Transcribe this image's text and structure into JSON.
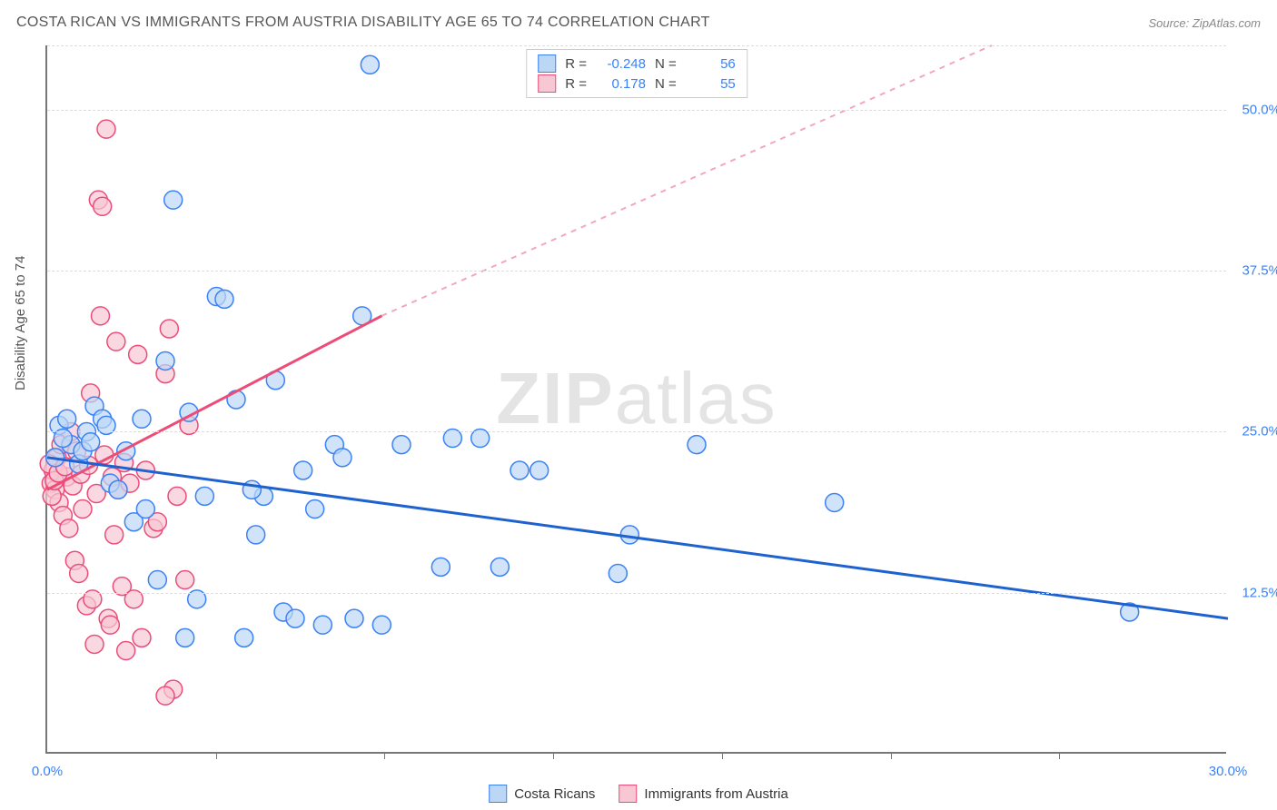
{
  "header": {
    "title": "COSTA RICAN VS IMMIGRANTS FROM AUSTRIA DISABILITY AGE 65 TO 74 CORRELATION CHART",
    "source_label": "Source: ZipAtlas.com"
  },
  "watermark": "ZIPatlas",
  "axes": {
    "y_title": "Disability Age 65 to 74",
    "x_min": 0.0,
    "x_max": 30.0,
    "y_min": 0.0,
    "y_max": 55.0,
    "x_ticks": [
      0.0,
      30.0
    ],
    "x_tick_labels": [
      "0.0%",
      "30.0%"
    ],
    "x_minor_ticks": [
      4.29,
      8.57,
      12.86,
      17.14,
      21.43,
      25.71
    ],
    "y_gridlines": [
      12.5,
      25.0,
      37.5,
      50.0
    ],
    "y_tick_labels": [
      "12.5%",
      "25.0%",
      "37.5%",
      "50.0%"
    ],
    "grid_color": "#dddddd",
    "axis_color": "#777777",
    "tick_label_color": "#3b82f6",
    "label_fontsize": 15
  },
  "legend_top": {
    "rows": [
      {
        "swatch_fill": "#bcd7f5",
        "swatch_stroke": "#3b82f6",
        "r_label": "R =",
        "r_value": "-0.248",
        "n_label": "N =",
        "n_value": "56"
      },
      {
        "swatch_fill": "#f7c8d4",
        "swatch_stroke": "#ec4d78",
        "r_label": "R =",
        "r_value": "0.178",
        "n_label": "N =",
        "n_value": "55"
      }
    ]
  },
  "legend_bottom": {
    "items": [
      {
        "swatch_fill": "#bcd7f5",
        "swatch_stroke": "#3b82f6",
        "label": "Costa Ricans"
      },
      {
        "swatch_fill": "#f7c8d4",
        "swatch_stroke": "#ec4d78",
        "label": "Immigrants from Austria"
      }
    ]
  },
  "series": {
    "blue": {
      "fill": "#bcd7f5",
      "stroke": "#3b82f6",
      "opacity": 0.7,
      "radius": 10,
      "points": [
        [
          0.2,
          23.0
        ],
        [
          0.3,
          25.5
        ],
        [
          0.5,
          26.0
        ],
        [
          0.6,
          24.0
        ],
        [
          0.8,
          22.5
        ],
        [
          1.0,
          25.0
        ],
        [
          1.2,
          27.0
        ],
        [
          1.4,
          26.0
        ],
        [
          1.6,
          21.0
        ],
        [
          1.8,
          20.5
        ],
        [
          2.0,
          23.5
        ],
        [
          2.2,
          18.0
        ],
        [
          2.5,
          19.0
        ],
        [
          2.8,
          13.5
        ],
        [
          3.0,
          30.5
        ],
        [
          3.2,
          43.0
        ],
        [
          3.5,
          9.0
        ],
        [
          3.8,
          12.0
        ],
        [
          4.0,
          20.0
        ],
        [
          4.3,
          35.5
        ],
        [
          4.5,
          35.3
        ],
        [
          4.8,
          27.5
        ],
        [
          5.0,
          9.0
        ],
        [
          5.3,
          17.0
        ],
        [
          5.5,
          20.0
        ],
        [
          5.8,
          29.0
        ],
        [
          6.0,
          11.0
        ],
        [
          6.3,
          10.5
        ],
        [
          6.5,
          22.0
        ],
        [
          7.0,
          10.0
        ],
        [
          7.3,
          24.0
        ],
        [
          7.5,
          23.0
        ],
        [
          7.8,
          10.5
        ],
        [
          8.0,
          34.0
        ],
        [
          8.2,
          53.5
        ],
        [
          8.5,
          10.0
        ],
        [
          9.0,
          24.0
        ],
        [
          10.0,
          14.5
        ],
        [
          10.3,
          24.5
        ],
        [
          11.0,
          24.5
        ],
        [
          11.5,
          14.5
        ],
        [
          12.0,
          22.0
        ],
        [
          12.5,
          22.0
        ],
        [
          14.5,
          14.0
        ],
        [
          14.8,
          17.0
        ],
        [
          16.5,
          24.0
        ],
        [
          20.0,
          19.5
        ],
        [
          27.5,
          11.0
        ],
        [
          0.4,
          24.5
        ],
        [
          0.9,
          23.5
        ],
        [
          1.5,
          25.5
        ],
        [
          2.4,
          26.0
        ],
        [
          3.6,
          26.5
        ],
        [
          5.2,
          20.5
        ],
        [
          6.8,
          19.0
        ],
        [
          1.1,
          24.2
        ]
      ]
    },
    "pink": {
      "fill": "#f7c8d4",
      "stroke": "#ec4d78",
      "opacity": 0.7,
      "radius": 10,
      "points": [
        [
          0.1,
          21.0
        ],
        [
          0.15,
          22.0
        ],
        [
          0.2,
          20.5
        ],
        [
          0.25,
          23.0
        ],
        [
          0.3,
          19.5
        ],
        [
          0.35,
          24.0
        ],
        [
          0.4,
          18.5
        ],
        [
          0.5,
          21.5
        ],
        [
          0.55,
          17.5
        ],
        [
          0.6,
          25.0
        ],
        [
          0.7,
          15.0
        ],
        [
          0.75,
          23.5
        ],
        [
          0.8,
          14.0
        ],
        [
          0.9,
          19.0
        ],
        [
          1.0,
          11.5
        ],
        [
          1.1,
          28.0
        ],
        [
          1.15,
          12.0
        ],
        [
          1.2,
          8.5
        ],
        [
          1.3,
          43.0
        ],
        [
          1.35,
          34.0
        ],
        [
          1.4,
          42.5
        ],
        [
          1.5,
          48.5
        ],
        [
          1.55,
          10.5
        ],
        [
          1.6,
          10.0
        ],
        [
          1.7,
          17.0
        ],
        [
          1.75,
          32.0
        ],
        [
          1.8,
          20.5
        ],
        [
          1.9,
          13.0
        ],
        [
          2.0,
          8.0
        ],
        [
          2.1,
          21.0
        ],
        [
          2.2,
          12.0
        ],
        [
          2.3,
          31.0
        ],
        [
          2.4,
          9.0
        ],
        [
          2.5,
          22.0
        ],
        [
          2.7,
          17.5
        ],
        [
          2.8,
          18.0
        ],
        [
          3.0,
          29.5
        ],
        [
          3.1,
          33.0
        ],
        [
          3.2,
          5.0
        ],
        [
          3.3,
          20.0
        ],
        [
          3.5,
          13.5
        ],
        [
          3.6,
          25.5
        ],
        [
          3.0,
          4.5
        ],
        [
          0.05,
          22.5
        ],
        [
          0.12,
          20.0
        ],
        [
          0.18,
          21.2
        ],
        [
          0.28,
          21.8
        ],
        [
          0.45,
          22.3
        ],
        [
          0.65,
          20.8
        ],
        [
          0.85,
          21.7
        ],
        [
          1.05,
          22.4
        ],
        [
          1.25,
          20.2
        ],
        [
          1.45,
          23.2
        ],
        [
          1.65,
          21.5
        ],
        [
          1.95,
          22.6
        ]
      ]
    }
  },
  "trend_lines": {
    "blue": {
      "color": "#1e62d0",
      "width": 3,
      "x1": 0.0,
      "y1": 23.0,
      "x2": 30.0,
      "y2": 10.5,
      "dash": ""
    },
    "pink_solid": {
      "color": "#ec4d78",
      "width": 3,
      "x1": 0.0,
      "y1": 20.5,
      "x2": 8.5,
      "y2": 34.0,
      "dash": ""
    },
    "pink_dash": {
      "color": "#f3a7bb",
      "width": 2,
      "x1": 8.5,
      "y1": 34.0,
      "x2": 24.0,
      "y2": 55.0,
      "dash": "6 6"
    }
  }
}
